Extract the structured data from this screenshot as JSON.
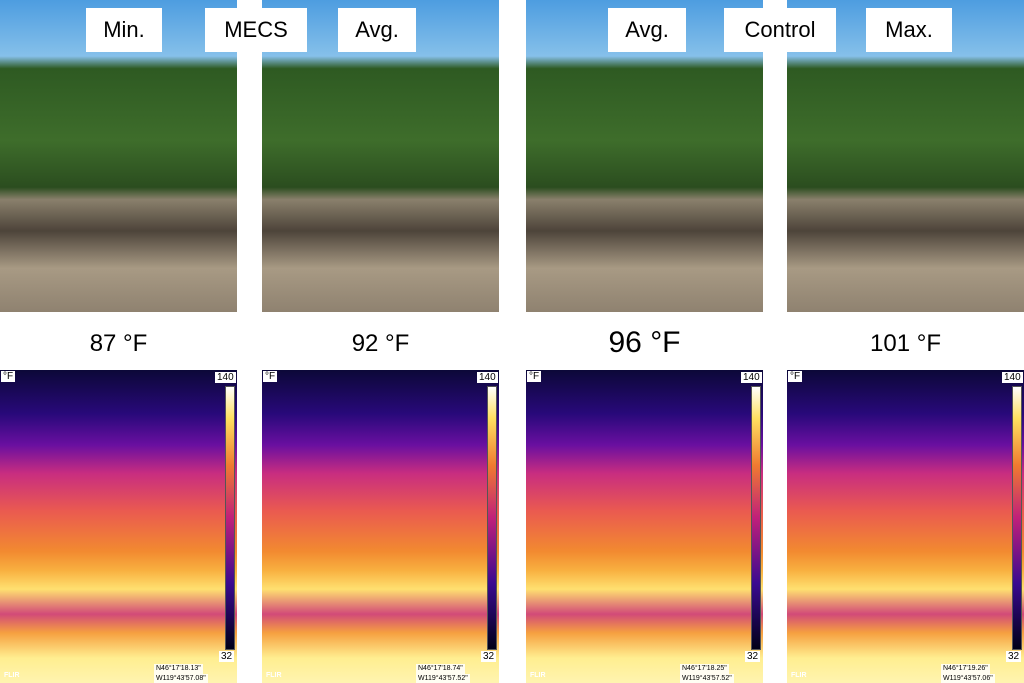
{
  "top_labels": [
    "Min.",
    "MECS",
    "Avg.",
    "Avg.",
    "Control",
    "Max."
  ],
  "panels": [
    {
      "temperature": "87 °F",
      "scale_unit": "°F",
      "scale_max": 140,
      "scale_min": 32,
      "gps_n": "N46°17'18.13\"",
      "gps_w": "W119°43'57.08\"",
      "logo": "FLIR"
    },
    {
      "temperature": "92 °F",
      "scale_unit": "°F",
      "scale_max": 140,
      "scale_min": 32,
      "gps_n": "N46°17'18.74\"",
      "gps_w": "W119°43'57.52\"",
      "logo": "FLIR"
    },
    {
      "temperature": "96 °F",
      "scale_unit": "°F",
      "scale_max": 140,
      "scale_min": 32,
      "gps_n": "N46°17'18.25\"",
      "gps_w": "W119°43'57.52\"",
      "logo": "FLIR"
    },
    {
      "temperature": "101 °F",
      "scale_unit": "°F",
      "scale_max": 140,
      "scale_min": 32,
      "gps_n": "N46°17'19.26\"",
      "gps_w": "W119°43'57.06\"",
      "logo": "FLIR"
    }
  ]
}
